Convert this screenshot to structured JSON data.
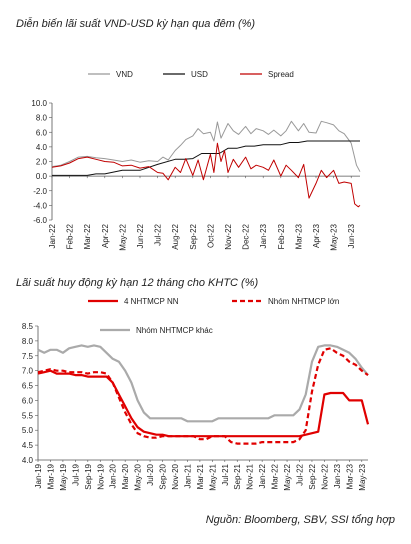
{
  "source": "Nguồn:  Bloomberg, SBV, SSI tổng hợp",
  "chart_data": [
    {
      "type": "line",
      "title": "Diễn biến lãi suất VND-USD kỳ hạn qua đêm (%)",
      "ylim": [
        -6.0,
        10.0
      ],
      "yticks": [
        "10.0",
        "8.0",
        "6.0",
        "4.0",
        "2.0",
        "0.0",
        "-2.0",
        "-4.0",
        "-6.0"
      ],
      "x_ticks": [
        "Jan-22",
        "Feb-22",
        "Mar-22",
        "Apr-22",
        "May-22",
        "Jun-22",
        "Jul-22",
        "Aug-22",
        "Sep-22",
        "Oct-22",
        "Nov-22",
        "Dec-22",
        "Jan-23",
        "Feb-23",
        "Mar-23",
        "Apr-23",
        "May-23",
        "Jun-23"
      ],
      "legend_position": "top",
      "series": [
        {
          "name": "VND",
          "color": "#999999",
          "x": [
            0,
            0.5,
            1,
            1.5,
            2,
            2.5,
            3,
            3.5,
            4,
            4.5,
            5,
            5.5,
            6,
            6.3,
            6.6,
            7,
            7.3,
            7.6,
            8,
            8.3,
            8.6,
            9,
            9.2,
            9.4,
            9.6,
            9.8,
            10,
            10.3,
            10.6,
            11,
            11.3,
            11.6,
            12,
            12.3,
            12.6,
            13,
            13.3,
            13.6,
            14,
            14.3,
            14.6,
            15,
            15.3,
            15.6,
            16,
            16.3,
            16.6,
            17,
            17.3,
            17.5
          ],
          "y": [
            1.3,
            1.5,
            2.0,
            2.6,
            2.7,
            2.5,
            2.4,
            2.2,
            2.0,
            2.2,
            1.9,
            2.1,
            2.0,
            2.6,
            2.2,
            3.5,
            4.2,
            5.0,
            5.5,
            6.5,
            5.8,
            6.0,
            4.8,
            7.4,
            5.2,
            6.2,
            7.2,
            6.2,
            5.7,
            6.8,
            5.8,
            6.5,
            6.2,
            5.7,
            6.3,
            5.5,
            6.2,
            7.5,
            6.2,
            7.2,
            6.0,
            5.9,
            7.5,
            7.3,
            7.0,
            6.2,
            5.8,
            4.5,
            1.5,
            0.6
          ]
        },
        {
          "name": "USD",
          "color": "#111111",
          "x": [
            0,
            2,
            2.5,
            3,
            4,
            5,
            6,
            7,
            7.5,
            8,
            8.5,
            9,
            9.5,
            10,
            10.5,
            11,
            11.5,
            12,
            12.5,
            13,
            13.5,
            14,
            14.5,
            15,
            15.5,
            16,
            16.5,
            17,
            17.5
          ],
          "y": [
            0.1,
            0.1,
            0.3,
            0.3,
            0.8,
            0.8,
            1.6,
            2.3,
            2.3,
            2.4,
            3.1,
            3.1,
            3.1,
            3.8,
            3.8,
            4.1,
            4.1,
            4.3,
            4.3,
            4.3,
            4.6,
            4.6,
            4.8,
            4.8,
            4.8,
            4.8,
            4.8,
            4.8,
            4.8
          ]
        },
        {
          "name": "Spread",
          "color": "#c00000",
          "x": [
            0,
            0.5,
            1,
            1.5,
            2,
            2.5,
            3,
            3.5,
            4,
            4.5,
            5,
            5.5,
            6,
            6.3,
            6.6,
            7,
            7.3,
            7.6,
            8,
            8.3,
            8.6,
            9,
            9.2,
            9.4,
            9.6,
            9.8,
            10,
            10.3,
            10.6,
            11,
            11.3,
            11.6,
            12,
            12.3,
            12.6,
            13,
            13.3,
            13.6,
            14,
            14.3,
            14.6,
            15,
            15.3,
            15.6,
            16,
            16.3,
            16.6,
            17,
            17.2,
            17.4,
            17.5
          ],
          "y": [
            1.2,
            1.4,
            1.8,
            2.4,
            2.6,
            2.3,
            2.0,
            1.9,
            1.4,
            1.5,
            1.1,
            1.3,
            0.5,
            0.4,
            -0.5,
            1.2,
            0.5,
            2.4,
            0.1,
            2.2,
            -0.5,
            3.0,
            0.5,
            4.5,
            2.0,
            3.5,
            0.5,
            2.3,
            1.2,
            2.6,
            1.0,
            1.5,
            1.2,
            0.8,
            2.2,
            0.0,
            1.5,
            0.8,
            -0.2,
            1.6,
            -3.0,
            -1.0,
            0.8,
            -0.2,
            0.8,
            -1.0,
            -0.8,
            -1.0,
            -3.8,
            -4.2,
            -4.0
          ]
        }
      ]
    },
    {
      "type": "line",
      "title": "Lãi suất huy động kỳ hạn 12 tháng cho KHTC (%)",
      "ylim": [
        4.0,
        8.5
      ],
      "yticks": [
        "8.5",
        "8.0",
        "7.5",
        "7.0",
        "6.5",
        "6.0",
        "5.5",
        "5.0",
        "4.5",
        "4.0"
      ],
      "x_ticks": [
        "Jan-19",
        "Mar-19",
        "May-19",
        "Jul-19",
        "Sep-19",
        "Nov-19",
        "Jan-20",
        "Mar-20",
        "May-20",
        "Jul-20",
        "Sep-20",
        "Nov-20",
        "Jan-21",
        "Mar-21",
        "May-21",
        "Jul-21",
        "Sep-21",
        "Nov-21",
        "Jan-22",
        "Mar-22",
        "May-22",
        "Jul-22",
        "Sep-22",
        "Nov-22",
        "Jan-23",
        "Mar-23",
        "May-23"
      ],
      "legend_position": "top",
      "series": [
        {
          "name": "4 NHTMCP NN",
          "color": "#e00000",
          "dash": false,
          "x": [
            0,
            1,
            2,
            3,
            4,
            5,
            6,
            7,
            8,
            9,
            10,
            11,
            12,
            13,
            14,
            15,
            16,
            17,
            18,
            19,
            20,
            21,
            22,
            23,
            24,
            25,
            26,
            27,
            28,
            29,
            30,
            31,
            32,
            33,
            34,
            35,
            36,
            37,
            38,
            39,
            40,
            41,
            42,
            43,
            44,
            45,
            46,
            47,
            48,
            49,
            50,
            51,
            52,
            53
          ],
          "y": [
            6.9,
            6.95,
            7.0,
            6.9,
            6.9,
            6.9,
            6.85,
            6.85,
            6.8,
            6.8,
            6.8,
            6.8,
            6.6,
            6.2,
            5.8,
            5.4,
            5.1,
            4.95,
            4.9,
            4.85,
            4.85,
            4.8,
            4.8,
            4.8,
            4.8,
            4.8,
            4.8,
            4.8,
            4.8,
            4.8,
            4.8,
            4.8,
            4.8,
            4.8,
            4.8,
            4.8,
            4.8,
            4.8,
            4.8,
            4.8,
            4.8,
            4.8,
            4.8,
            4.85,
            4.9,
            4.95,
            6.2,
            6.25,
            6.25,
            6.25,
            6.0,
            6.0,
            6.0,
            5.2
          ]
        },
        {
          "name": "Nhóm NHTMCP lớn",
          "color": "#e00000",
          "dash": true,
          "x": [
            0,
            1,
            2,
            3,
            4,
            5,
            6,
            7,
            8,
            9,
            10,
            11,
            12,
            13,
            14,
            15,
            16,
            17,
            18,
            19,
            20,
            21,
            22,
            23,
            24,
            25,
            26,
            27,
            28,
            29,
            30,
            31,
            32,
            33,
            34,
            35,
            36,
            37,
            38,
            39,
            40,
            41,
            42,
            43,
            44,
            45,
            46,
            47,
            48,
            49,
            50,
            51,
            52,
            53
          ],
          "y": [
            6.95,
            7.0,
            7.05,
            7.0,
            7.0,
            6.95,
            6.95,
            6.95,
            6.9,
            6.95,
            6.95,
            6.9,
            6.6,
            6.1,
            5.6,
            5.2,
            4.9,
            4.8,
            4.75,
            4.75,
            4.8,
            4.8,
            4.8,
            4.8,
            4.8,
            4.8,
            4.7,
            4.7,
            4.8,
            4.8,
            4.8,
            4.6,
            4.55,
            4.55,
            4.55,
            4.55,
            4.6,
            4.6,
            4.6,
            4.6,
            4.6,
            4.6,
            4.7,
            5.0,
            6.3,
            7.2,
            7.7,
            7.75,
            7.6,
            7.5,
            7.3,
            7.2,
            7.0,
            6.85
          ]
        },
        {
          "name": "Nhóm NHTMCP khác",
          "color": "#aaaaaa",
          "dash": false,
          "x": [
            0,
            1,
            2,
            3,
            4,
            5,
            6,
            7,
            8,
            9,
            10,
            11,
            12,
            13,
            14,
            15,
            16,
            17,
            18,
            19,
            20,
            21,
            22,
            23,
            24,
            25,
            26,
            27,
            28,
            29,
            30,
            31,
            32,
            33,
            34,
            35,
            36,
            37,
            38,
            39,
            40,
            41,
            42,
            43,
            44,
            45,
            46,
            47,
            48,
            49,
            50,
            51,
            52,
            53
          ],
          "y": [
            7.7,
            7.6,
            7.7,
            7.7,
            7.6,
            7.75,
            7.8,
            7.85,
            7.8,
            7.85,
            7.8,
            7.6,
            7.4,
            7.3,
            7.0,
            6.6,
            6.0,
            5.6,
            5.4,
            5.4,
            5.4,
            5.4,
            5.4,
            5.4,
            5.3,
            5.3,
            5.3,
            5.3,
            5.3,
            5.4,
            5.4,
            5.4,
            5.4,
            5.4,
            5.4,
            5.4,
            5.4,
            5.4,
            5.5,
            5.5,
            5.5,
            5.5,
            5.7,
            6.2,
            7.3,
            7.8,
            7.85,
            7.85,
            7.8,
            7.7,
            7.6,
            7.4,
            7.1,
            6.85
          ]
        }
      ]
    }
  ]
}
